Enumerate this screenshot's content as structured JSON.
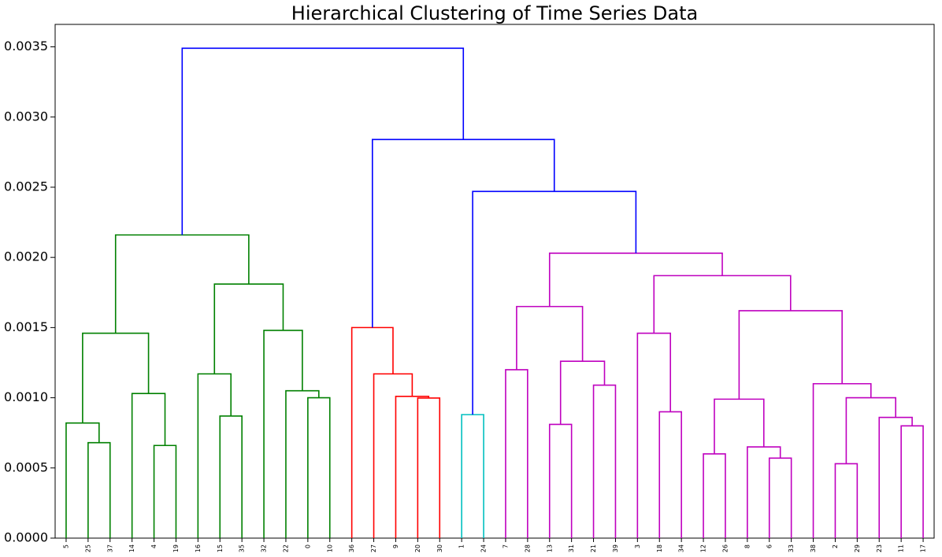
{
  "chart_data": {
    "type": "dendrogram",
    "title": "Hierarchical Clustering of Time Series Data",
    "leaves": [
      "5",
      "25",
      "37",
      "14",
      "4",
      "19",
      "16",
      "15",
      "35",
      "32",
      "22",
      "0",
      "10",
      "36",
      "27",
      "9",
      "20",
      "30",
      "1",
      "24",
      "7",
      "28",
      "13",
      "31",
      "21",
      "39",
      "3",
      "18",
      "34",
      "12",
      "26",
      "8",
      "6",
      "33",
      "38",
      "2",
      "29",
      "23",
      "11",
      "17"
    ],
    "merges": [
      {
        "children": [
          1,
          2
        ],
        "height": 0.00068,
        "color": "#008000"
      },
      {
        "children": [
          0,
          40
        ],
        "height": 0.00082,
        "color": "#008000"
      },
      {
        "children": [
          4,
          5
        ],
        "height": 0.00066,
        "color": "#008000"
      },
      {
        "children": [
          3,
          42
        ],
        "height": 0.00103,
        "color": "#008000"
      },
      {
        "children": [
          41,
          43
        ],
        "height": 0.00146,
        "color": "#008000"
      },
      {
        "children": [
          7,
          8
        ],
        "height": 0.00087,
        "color": "#008000"
      },
      {
        "children": [
          6,
          45
        ],
        "height": 0.00117,
        "color": "#008000"
      },
      {
        "children": [
          11,
          12
        ],
        "height": 0.001,
        "color": "#008000"
      },
      {
        "children": [
          10,
          47
        ],
        "height": 0.00105,
        "color": "#008000"
      },
      {
        "children": [
          9,
          48
        ],
        "height": 0.00148,
        "color": "#008000"
      },
      {
        "children": [
          46,
          49
        ],
        "height": 0.00181,
        "color": "#008000"
      },
      {
        "children": [
          44,
          50
        ],
        "height": 0.00216,
        "color": "#008000"
      },
      {
        "children": [
          16,
          17
        ],
        "height": 0.000998,
        "color": "#ff0000"
      },
      {
        "children": [
          15,
          52
        ],
        "height": 0.00101,
        "color": "#ff0000"
      },
      {
        "children": [
          14,
          53
        ],
        "height": 0.00117,
        "color": "#ff0000"
      },
      {
        "children": [
          13,
          54
        ],
        "height": 0.0015,
        "color": "#ff0000"
      },
      {
        "children": [
          18,
          19
        ],
        "height": 0.00088,
        "color": "#00bfbf"
      },
      {
        "children": [
          20,
          21
        ],
        "height": 0.0012,
        "color": "#bf00bf"
      },
      {
        "children": [
          22,
          23
        ],
        "height": 0.00081,
        "color": "#bf00bf"
      },
      {
        "children": [
          24,
          25
        ],
        "height": 0.00109,
        "color": "#bf00bf"
      },
      {
        "children": [
          58,
          59
        ],
        "height": 0.00126,
        "color": "#bf00bf"
      },
      {
        "children": [
          57,
          60
        ],
        "height": 0.00165,
        "color": "#bf00bf"
      },
      {
        "children": [
          27,
          28
        ],
        "height": 0.0009,
        "color": "#bf00bf"
      },
      {
        "children": [
          26,
          62
        ],
        "height": 0.00146,
        "color": "#bf00bf"
      },
      {
        "children": [
          29,
          30
        ],
        "height": 0.0006,
        "color": "#bf00bf"
      },
      {
        "children": [
          32,
          33
        ],
        "height": 0.00057,
        "color": "#bf00bf"
      },
      {
        "children": [
          31,
          65
        ],
        "height": 0.00065,
        "color": "#bf00bf"
      },
      {
        "children": [
          64,
          66
        ],
        "height": 0.00099,
        "color": "#bf00bf"
      },
      {
        "children": [
          35,
          36
        ],
        "height": 0.00053,
        "color": "#bf00bf"
      },
      {
        "children": [
          38,
          39
        ],
        "height": 0.0008,
        "color": "#bf00bf"
      },
      {
        "children": [
          37,
          69
        ],
        "height": 0.00086,
        "color": "#bf00bf"
      },
      {
        "children": [
          68,
          70
        ],
        "height": 0.001,
        "color": "#bf00bf"
      },
      {
        "children": [
          34,
          71
        ],
        "height": 0.0011,
        "color": "#bf00bf"
      },
      {
        "children": [
          67,
          72
        ],
        "height": 0.00162,
        "color": "#bf00bf"
      },
      {
        "children": [
          63,
          73
        ],
        "height": 0.00187,
        "color": "#bf00bf"
      },
      {
        "children": [
          61,
          74
        ],
        "height": 0.00203,
        "color": "#bf00bf"
      },
      {
        "children": [
          56,
          75
        ],
        "height": 0.00247,
        "color": "#0000ff"
      },
      {
        "children": [
          55,
          76
        ],
        "height": 0.00284,
        "color": "#0000ff"
      },
      {
        "children": [
          51,
          77
        ],
        "height": 0.00349,
        "color": "#0000ff"
      }
    ],
    "ylim": [
      0,
      0.00366
    ],
    "yticks": [
      {
        "value": 0,
        "label": "0.0000"
      },
      {
        "value": 0.0005,
        "label": "0.0005"
      },
      {
        "value": 0.001,
        "label": "0.0010"
      },
      {
        "value": 0.0015,
        "label": "0.0015"
      },
      {
        "value": 0.002,
        "label": "0.0020"
      },
      {
        "value": 0.0025,
        "label": "0.0025"
      },
      {
        "value": 0.003,
        "label": "0.0030"
      },
      {
        "value": 0.0035,
        "label": "0.0035"
      }
    ]
  }
}
